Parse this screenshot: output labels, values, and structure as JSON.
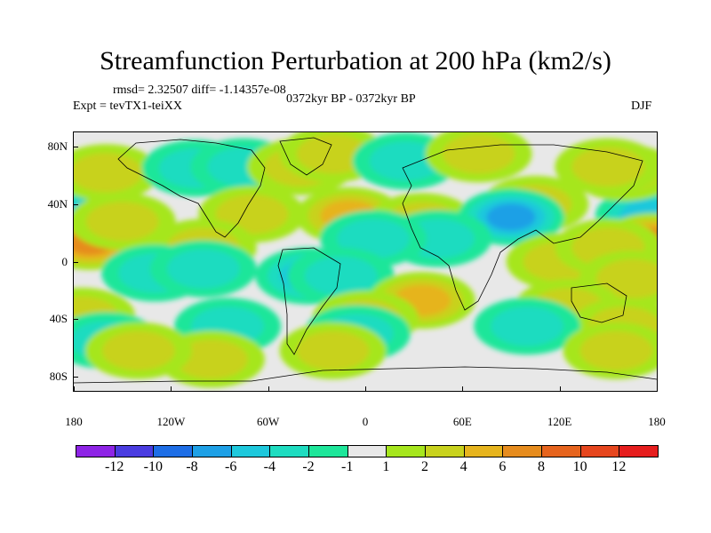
{
  "chart_data": {
    "type": "heatmap",
    "title": "Streamfunction Perturbation at 200 hPa (km2/s)",
    "stats": "rmsd= 2.32507 diff= -1.14357e-08",
    "experiment": "Expt = tevTX1-teiXX",
    "period": "0372kyr BP - 0372kyr BP",
    "season": "DJF",
    "x_range": [
      -180,
      180
    ],
    "y_range": [
      -90,
      90
    ],
    "x_ticks": [
      {
        "value": -180,
        "label": "180"
      },
      {
        "value": -120,
        "label": "120W"
      },
      {
        "value": -60,
        "label": "60W"
      },
      {
        "value": 0,
        "label": "0"
      },
      {
        "value": 60,
        "label": "60E"
      },
      {
        "value": 120,
        "label": "120E"
      },
      {
        "value": 180,
        "label": "180"
      }
    ],
    "y_ticks": [
      {
        "value": 80,
        "label": "80N"
      },
      {
        "value": 40,
        "label": "40N"
      },
      {
        "value": 0,
        "label": "0"
      },
      {
        "value": -40,
        "label": "40S"
      },
      {
        "value": -80,
        "label": "80S"
      }
    ],
    "levels": [
      -12,
      -10,
      -8,
      -6,
      -4,
      -2,
      -1,
      1,
      2,
      4,
      6,
      8,
      10,
      12
    ],
    "level_labels": [
      "-12",
      "-10",
      "-8",
      "-6",
      "-4",
      "-2",
      "-1",
      "1",
      "2",
      "4",
      "6",
      "8",
      "10",
      "12"
    ],
    "colors": [
      "#8e24e6",
      "#4a3ce0",
      "#1e6ee6",
      "#1ea0e6",
      "#1ec8dc",
      "#1edcc0",
      "#1ee69a",
      "#e8e8e8",
      "#a6e61e",
      "#c8d21e",
      "#e6b41e",
      "#e68c1e",
      "#e6641e",
      "#e6461e",
      "#e61e1e"
    ],
    "background": "#e8e8e8",
    "anomalies": [
      {
        "lon": -170,
        "lat": 32,
        "value": -5
      },
      {
        "lon": 175,
        "lat": 32,
        "value": -5
      },
      {
        "lon": -170,
        "lat": 14,
        "value": 7
      },
      {
        "lon": 178,
        "lat": 14,
        "value": 7
      },
      {
        "lon": -160,
        "lat": 62,
        "value": 3
      },
      {
        "lon": 160,
        "lat": 62,
        "value": 3
      },
      {
        "lon": -150,
        "lat": 28,
        "value": 2
      },
      {
        "lon": -105,
        "lat": 65,
        "value": -3
      },
      {
        "lon": -75,
        "lat": 66,
        "value": -2
      },
      {
        "lon": -40,
        "lat": 66,
        "value": 2
      },
      {
        "lon": -20,
        "lat": 75,
        "value": 2
      },
      {
        "lon": 25,
        "lat": 70,
        "value": -2
      },
      {
        "lon": 70,
        "lat": 75,
        "value": 2
      },
      {
        "lon": 150,
        "lat": 66,
        "value": 3
      },
      {
        "lon": 105,
        "lat": 40,
        "value": 2
      },
      {
        "lon": -70,
        "lat": 33,
        "value": 2
      },
      {
        "lon": -10,
        "lat": 32,
        "value": 5
      },
      {
        "lon": 35,
        "lat": 28,
        "value": 3
      },
      {
        "lon": 90,
        "lat": 31,
        "value": -7
      },
      {
        "lon": 45,
        "lat": 16,
        "value": -3
      },
      {
        "lon": 5,
        "lat": 16,
        "value": -2
      },
      {
        "lon": 120,
        "lat": 0,
        "value": 3
      },
      {
        "lon": 150,
        "lat": 10,
        "value": 2
      },
      {
        "lon": 165,
        "lat": -12,
        "value": 2
      },
      {
        "lon": -100,
        "lat": 10,
        "value": 2
      },
      {
        "lon": -130,
        "lat": -8,
        "value": -3
      },
      {
        "lon": -100,
        "lat": -5,
        "value": -2
      },
      {
        "lon": -35,
        "lat": -10,
        "value": -5
      },
      {
        "lon": -15,
        "lat": -10,
        "value": -2
      },
      {
        "lon": 35,
        "lat": -27,
        "value": 4
      },
      {
        "lon": 0,
        "lat": -40,
        "value": 2
      },
      {
        "lon": 125,
        "lat": -32,
        "value": 2
      },
      {
        "lon": 160,
        "lat": -45,
        "value": 2
      },
      {
        "lon": -175,
        "lat": -38,
        "value": 2
      },
      {
        "lon": -85,
        "lat": -45,
        "value": -2
      },
      {
        "lon": -5,
        "lat": -50,
        "value": -2
      },
      {
        "lon": 100,
        "lat": -45,
        "value": -2
      },
      {
        "lon": -160,
        "lat": -55,
        "value": -2
      },
      {
        "lon": -95,
        "lat": -68,
        "value": 2
      },
      {
        "lon": -20,
        "lat": -62,
        "value": 2
      },
      {
        "lon": 155,
        "lat": -62,
        "value": 2
      },
      {
        "lon": -140,
        "lat": -62,
        "value": 2
      }
    ]
  }
}
